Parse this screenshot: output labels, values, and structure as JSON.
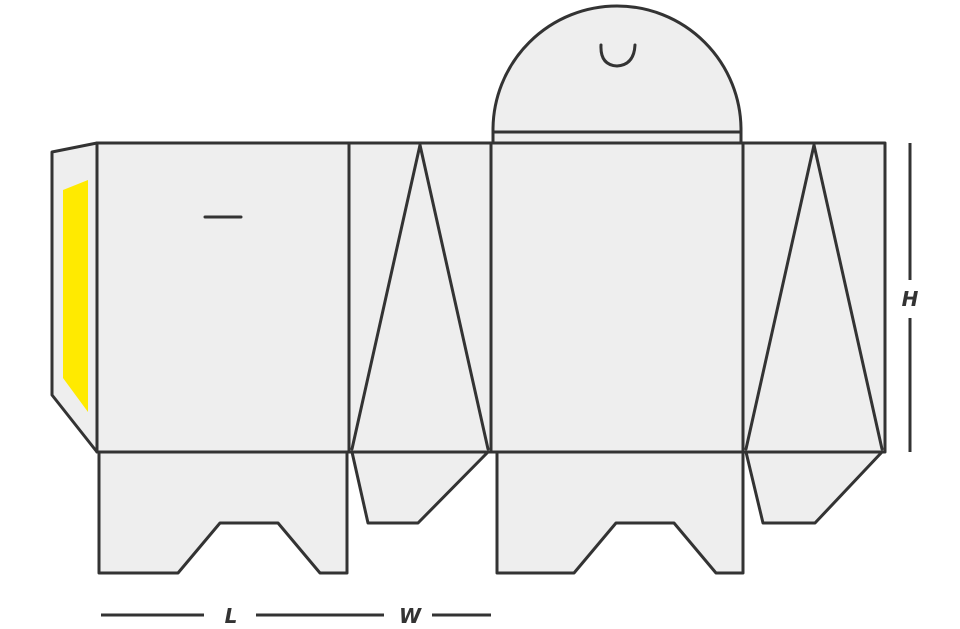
{
  "diagram": {
    "type": "packaging-dieline",
    "colors": {
      "panel_fill": "#eeeeee",
      "outline": "#333333",
      "glue_flap": "#ffea00",
      "background": "#ffffff"
    },
    "dimensions": {
      "length_label": "L",
      "width_label": "W",
      "height_label": "H"
    }
  }
}
